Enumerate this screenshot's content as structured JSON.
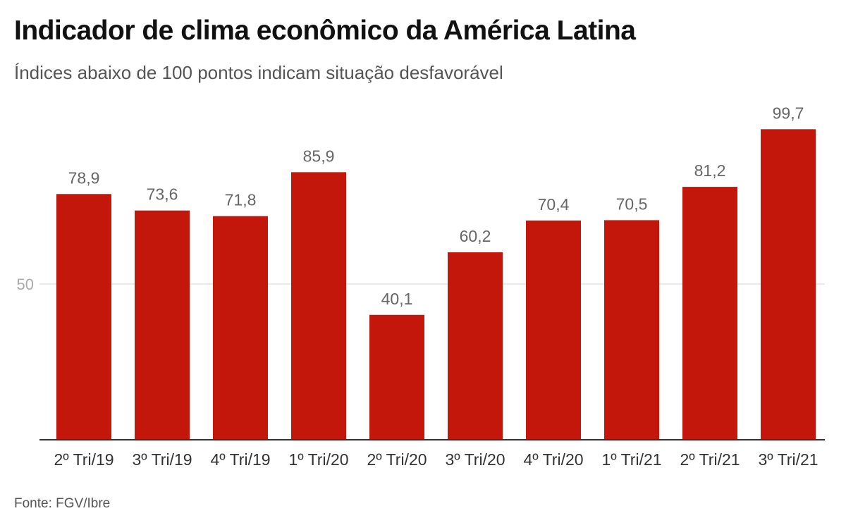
{
  "chart_data": {
    "type": "bar",
    "title": "Indicador de clima econômico da América Latina",
    "subtitle": "Índices abaixo de 100 pontos indicam situação desfavorável",
    "source": "Fonte: FGV/Ibre",
    "categories": [
      "2º Tri/19",
      "3º Tri/19",
      "4º Tri/19",
      "1º Tri/20",
      "2º Tri/20",
      "3º Tri/20",
      "4º Tri/20",
      "1º Tri/21",
      "2º Tri/21",
      "3º Tri/21"
    ],
    "values": [
      78.9,
      73.6,
      71.8,
      85.9,
      40.1,
      60.2,
      70.4,
      70.5,
      81.2,
      99.7
    ],
    "value_labels": [
      "78,9",
      "73,6",
      "71,8",
      "85,9",
      "40,1",
      "60,2",
      "70,4",
      "70,5",
      "81,2",
      "99,7"
    ],
    "yticks": [
      {
        "value": 50,
        "label": "50"
      }
    ],
    "ylim": [
      0,
      100
    ],
    "grid": true,
    "xlabel": "",
    "ylabel": "",
    "bar_color": "#c4170c"
  }
}
